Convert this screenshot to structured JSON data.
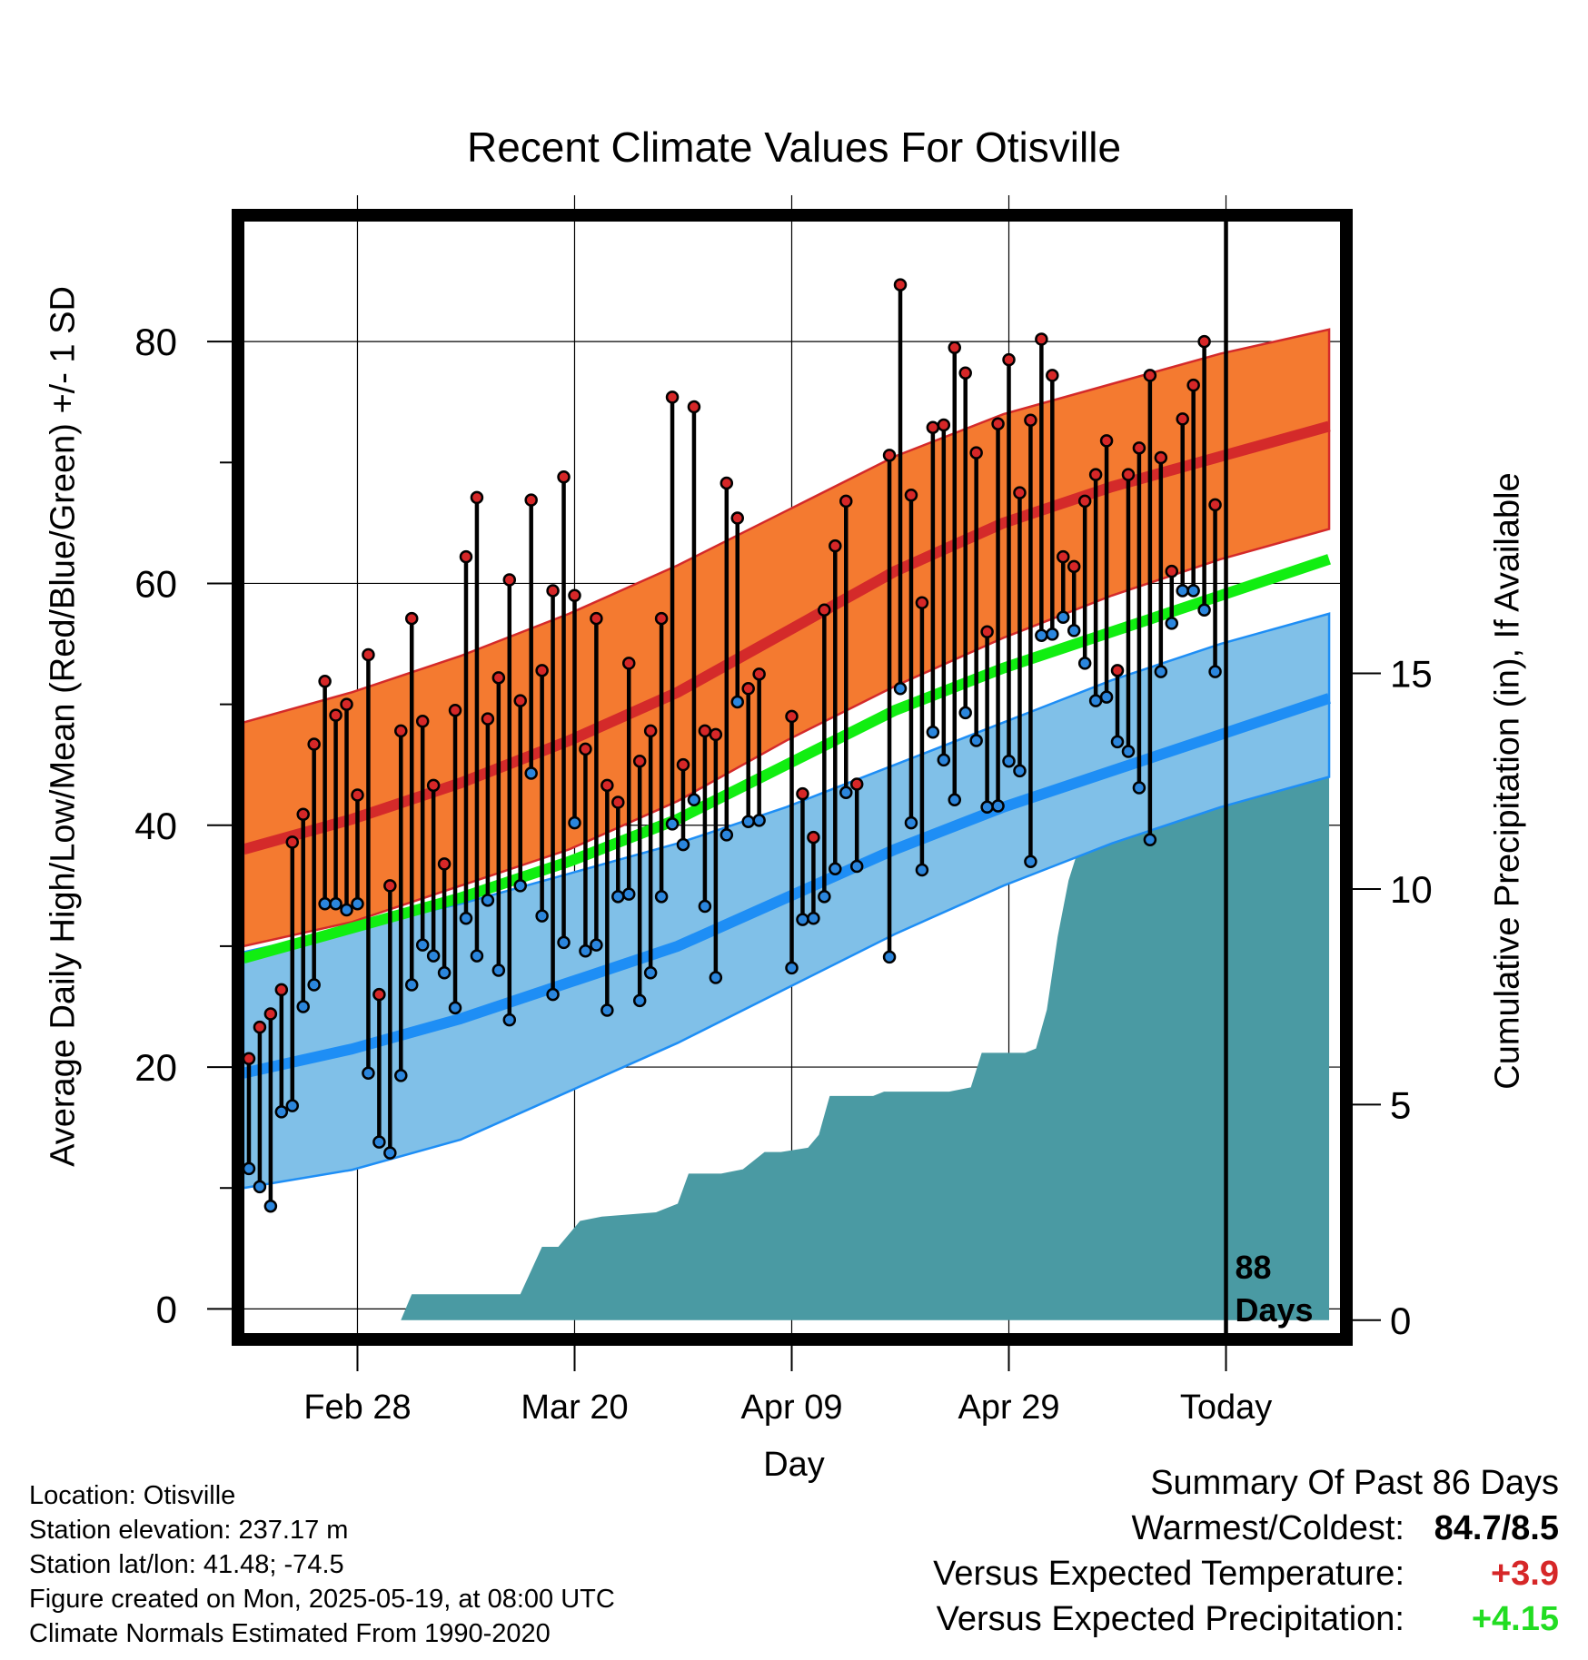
{
  "chart_data": {
    "type": "line",
    "title": "Recent Climate Values For Otisville",
    "xlabel": "Day",
    "ylabel_left": "Average Daily High/Low/Mean (Red/Blue/Green) +/- 1 SD",
    "ylabel_right": "Cumulative Precipitation (in), If Available",
    "days_label": [
      "88",
      "Days"
    ],
    "x_range": [
      0,
      101
    ],
    "today_index": 90.5,
    "y_left_range": [
      -2,
      90
    ],
    "y_left_ticks": [
      "0",
      "20",
      "40",
      "60",
      "80"
    ],
    "y_right_range": [
      -0.3,
      25.5
    ],
    "y_right_ticks": [
      "0",
      "5",
      "10",
      "15"
    ],
    "x_ticks": [
      {
        "index": 10.5,
        "label": "Feb 28"
      },
      {
        "index": 30.5,
        "label": "Mar 20"
      },
      {
        "index": 50.5,
        "label": "Apr 09"
      },
      {
        "index": 70.5,
        "label": "Apr 29"
      },
      {
        "index": 90.5,
        "label": "Today"
      }
    ],
    "normals": {
      "high_mean": {
        "x": [
          0,
          10,
          20,
          30,
          40,
          50,
          60,
          70,
          80,
          90,
          100
        ],
        "y": [
          38,
          40.5,
          43.5,
          47,
          51,
          56,
          61,
          65,
          68,
          70.5,
          73
        ]
      },
      "high_upper": {
        "x": [
          0,
          10,
          20,
          30,
          40,
          50,
          60,
          70,
          80,
          90,
          100
        ],
        "y": [
          48.5,
          51,
          54,
          57.5,
          61.5,
          66,
          70.5,
          74,
          76.5,
          79,
          81
        ]
      },
      "high_lower": {
        "x": [
          0,
          10,
          20,
          30,
          40,
          50,
          60,
          70,
          80,
          90,
          100
        ],
        "y": [
          30,
          32,
          35,
          38,
          42,
          47,
          51.5,
          55.5,
          59,
          62,
          64.5
        ]
      },
      "mean": {
        "x": [
          0,
          10,
          20,
          30,
          40,
          50,
          60,
          70,
          80,
          90,
          100
        ],
        "y": [
          29,
          31.5,
          34,
          37,
          40.5,
          45,
          49.5,
          53,
          56,
          59,
          62
        ]
      },
      "low_mean": {
        "x": [
          0,
          10,
          20,
          30,
          40,
          50,
          60,
          70,
          80,
          90,
          100
        ],
        "y": [
          19.5,
          21.5,
          24,
          27,
          30,
          34,
          38,
          41.5,
          44.5,
          47.5,
          50.5
        ]
      },
      "low_upper": {
        "x": [
          0,
          10,
          20,
          30,
          40,
          50,
          60,
          70,
          80,
          90,
          100
        ],
        "y": [
          29.5,
          31.5,
          33.5,
          36,
          38.5,
          41.5,
          45,
          48.5,
          52,
          55,
          57.5
        ]
      },
      "low_lower": {
        "x": [
          0,
          10,
          20,
          30,
          40,
          50,
          60,
          70,
          80,
          90,
          100
        ],
        "y": [
          10,
          11.5,
          14,
          18,
          22,
          26.5,
          31,
          35,
          38.5,
          41.5,
          44
        ]
      }
    },
    "series": [
      {
        "name": "High",
        "values": [
          20.7,
          23.3,
          24.4,
          26.4,
          38.6,
          40.9,
          46.7,
          51.9,
          49.1,
          50.0,
          42.5,
          54.1,
          26.0,
          35.0,
          47.8,
          57.1,
          48.6,
          43.3,
          36.8,
          49.5,
          62.2,
          67.1,
          48.8,
          52.2,
          60.3,
          50.3,
          66.9,
          52.8,
          59.4,
          68.8,
          59.0,
          46.3,
          57.1,
          43.3,
          41.9,
          53.4,
          45.3,
          47.8,
          57.1,
          75.4,
          45.0,
          74.6,
          47.8,
          47.5,
          68.3,
          65.4,
          51.3,
          52.5,
          null,
          null,
          49.0,
          42.6,
          39.0,
          57.8,
          63.1,
          66.8,
          43.4,
          null,
          null,
          70.6,
          84.7,
          67.3,
          58.4,
          72.9,
          73.1,
          79.5,
          77.4,
          70.8,
          56.0,
          73.2,
          78.5,
          67.5,
          73.5,
          80.2,
          77.2,
          62.2,
          61.4,
          66.8,
          69.0,
          71.8,
          52.8,
          69.0,
          71.2,
          77.2,
          70.4,
          61.0,
          73.6,
          76.4,
          80.0,
          66.5
        ]
      },
      {
        "name": "Low",
        "values": [
          11.6,
          10.1,
          8.5,
          16.3,
          16.8,
          25.0,
          26.8,
          33.5,
          33.5,
          33.0,
          33.5,
          19.5,
          13.8,
          12.9,
          19.3,
          26.8,
          30.1,
          29.2,
          27.8,
          24.9,
          32.3,
          29.2,
          33.8,
          28.0,
          23.9,
          35.0,
          44.3,
          32.5,
          26.0,
          30.3,
          40.2,
          29.6,
          30.1,
          24.7,
          34.1,
          34.3,
          25.5,
          27.8,
          34.1,
          40.1,
          38.4,
          42.1,
          33.3,
          27.4,
          39.2,
          50.2,
          40.3,
          40.4,
          null,
          null,
          28.2,
          32.2,
          32.3,
          34.1,
          36.4,
          42.7,
          36.6,
          null,
          null,
          29.1,
          51.3,
          40.2,
          36.3,
          47.7,
          45.4,
          42.1,
          49.3,
          47.0,
          41.5,
          41.6,
          45.3,
          44.5,
          37.0,
          55.7,
          55.8,
          57.2,
          56.1,
          53.4,
          50.3,
          50.6,
          46.9,
          46.1,
          43.1,
          38.8,
          52.7,
          56.7,
          59.4,
          59.4,
          57.8,
          52.7
        ]
      },
      {
        "name": "Cumulative Precipitation",
        "x": [
          0,
          14.5,
          15.5,
          25.5,
          27.5,
          29,
          31,
          33,
          38,
          40,
          41,
          44,
          46,
          47,
          48,
          49.5,
          52,
          53,
          54,
          58,
          59,
          65,
          67,
          68,
          72,
          73,
          74,
          75,
          76,
          77,
          78,
          79,
          80,
          81,
          82,
          84,
          85,
          86,
          88,
          90,
          100
        ],
        "y": [
          0,
          0,
          0.6,
          0.6,
          1.7,
          1.7,
          2.3,
          2.4,
          2.5,
          2.7,
          3.4,
          3.4,
          3.5,
          3.7,
          3.9,
          3.9,
          4.0,
          4.3,
          5.2,
          5.2,
          5.3,
          5.3,
          5.4,
          6.2,
          6.2,
          6.3,
          7.2,
          8.9,
          10.2,
          11.0,
          11.2,
          11.4,
          12.5,
          14.3,
          14.3,
          14.4,
          15.0,
          15.1,
          15.1,
          15.1,
          15.1
        ]
      }
    ]
  },
  "footer": {
    "location": "Location: Otisville",
    "elevation": "Station elevation: 237.17 m",
    "latlon": "Station lat/lon: 41.48; -74.5",
    "created": "Figure created on Mon, 2025-05-19, at 08:00 UTC",
    "normals": "Climate Normals Estimated From 1990-2020"
  },
  "summary": {
    "title": "Summary Of Past 86 Days",
    "warmest_label": "Warmest/Coldest:",
    "warmest_value": "84.7/8.5",
    "temp_label": "Versus Expected Temperature:",
    "temp_value": "+3.9",
    "temp_color": "#d62728",
    "precip_label": "Versus Expected Precipitation:",
    "precip_value": "+4.15",
    "precip_color": "#22dd22"
  },
  "colors": {
    "high_band": "#f47a30",
    "high_line": "#d42a2a",
    "mean_line": "#11ee11",
    "low_band": "#80c0e8",
    "low_line": "#1e8ef5",
    "precip": "#4a9aa3",
    "high_dot": "#d62728",
    "low_dot": "#2b86dd"
  }
}
